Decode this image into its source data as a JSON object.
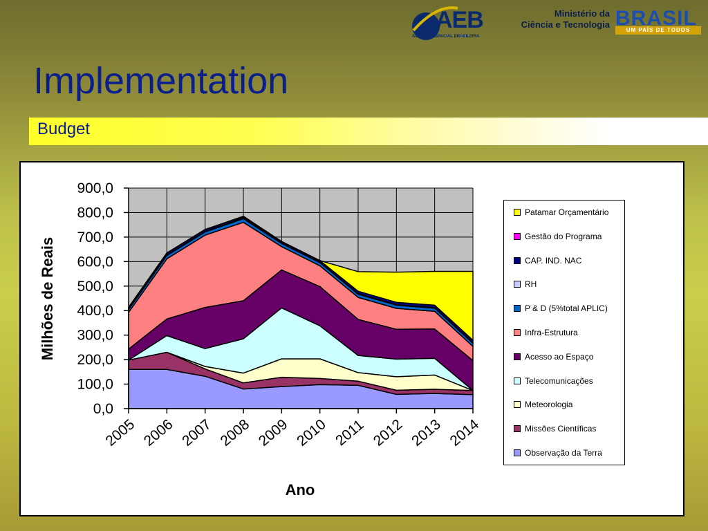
{
  "header": {
    "aeb_logo_text": "AEB",
    "aeb_logo_sub": "AGÊNCIA ESPACIAL BRASILEIRA",
    "ministry_line1": "Ministério da",
    "ministry_line2": "Ciência e Tecnologia",
    "brasil_logo_text": "BRASIL",
    "brasil_tagline": "UM PAÍS DE TODOS"
  },
  "slide": {
    "title": "Implementation",
    "subtitle": "Budget"
  },
  "colors": {
    "title": "#0a1e8c",
    "plot_bg": "#c0c0c0"
  },
  "chart_data": {
    "type": "area",
    "stacked": true,
    "title": "",
    "xlabel": "Ano",
    "ylabel": "Milhões de Reais",
    "ylim": [
      0,
      900
    ],
    "yticks": [
      "0,0",
      "100,0",
      "200,0",
      "300,0",
      "400,0",
      "500,0",
      "600,0",
      "700,0",
      "800,0",
      "900,0"
    ],
    "ytick_values": [
      0,
      100,
      200,
      300,
      400,
      500,
      600,
      700,
      800,
      900
    ],
    "categories": [
      "2005",
      "2006",
      "2007",
      "2008",
      "2009",
      "2010",
      "2011",
      "2012",
      "2013",
      "2014"
    ],
    "grid": true,
    "legend_position": "right",
    "series": [
      {
        "name": "Observação da Terra",
        "color": "#9999ff",
        "values": [
          160,
          160,
          132,
          80,
          90,
          98,
          95,
          58,
          62,
          57
        ]
      },
      {
        "name": "Missões Científicas",
        "color": "#993366",
        "values": [
          38,
          70,
          30,
          25,
          38,
          25,
          17,
          17,
          17,
          17
        ]
      },
      {
        "name": "Meteorologia",
        "color": "#ffffcc",
        "values": [
          0,
          0,
          10,
          40,
          75,
          80,
          35,
          55,
          58,
          0
        ]
      },
      {
        "name": "Telecomunicações",
        "color": "#ccffff",
        "values": [
          0,
          68,
          73,
          140,
          208,
          135,
          70,
          72,
          68,
          0
        ]
      },
      {
        "name": "Acesso ao Espaço",
        "color": "#660066",
        "values": [
          45,
          68,
          168,
          155,
          155,
          160,
          147,
          122,
          120,
          122
        ]
      },
      {
        "name": "Infra-Estrutura",
        "color": "#ff8080",
        "values": [
          150,
          245,
          295,
          320,
          95,
          85,
          90,
          85,
          72,
          58
        ]
      },
      {
        "name": "P & D (5%total APLIC)",
        "color": "#0066cc",
        "values": [
          12,
          14,
          13,
          15,
          13,
          13,
          13,
          13,
          13,
          13
        ]
      },
      {
        "name": "RH",
        "color": "#ccccff",
        "values": [
          2,
          2,
          2,
          2,
          2,
          2,
          2,
          2,
          2,
          2
        ]
      },
      {
        "name": "CAP. IND. NAC",
        "color": "#000080",
        "values": [
          6,
          8,
          8,
          5,
          6,
          6,
          10,
          10,
          10,
          10
        ]
      },
      {
        "name": "Gestão do Programa",
        "color": "#ff00ff",
        "values": [
          0,
          0,
          0,
          3,
          0,
          0,
          0,
          0,
          0,
          0
        ]
      },
      {
        "name": "Patamar Orçamentário",
        "color": "#ffff00",
        "values": [
          0,
          0,
          0,
          0,
          0,
          0,
          80,
          123,
          138,
          281
        ]
      }
    ]
  }
}
